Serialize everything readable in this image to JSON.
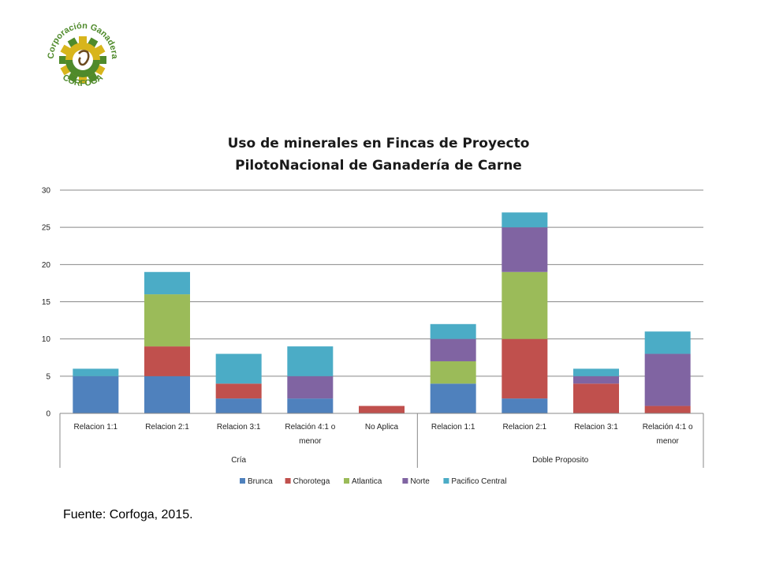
{
  "logo": {
    "text_top": "Corporación Ganadera",
    "text_bottom": "CORFOGA",
    "colors": {
      "green": "#4f8a2b",
      "yellow": "#d8b51c",
      "brown": "#6b4a1e"
    }
  },
  "source_note": "Fuente: Corfoga, 2015.",
  "chart_data": {
    "type": "bar",
    "stacked": true,
    "title": "Uso de minerales en Fincas de Proyecto PilotoNacional de Ganadería de Carne",
    "title_lines": [
      "Uso de minerales en Fincas de Proyecto",
      "PilotoNacional de Ganadería de Carne"
    ],
    "xlabel": "",
    "ylabel": "",
    "ylim": [
      0,
      30
    ],
    "yticks": [
      0,
      5,
      10,
      15,
      20,
      25,
      30
    ],
    "grid": true,
    "legend_position": "bottom",
    "groups": [
      {
        "name": "Cría",
        "categories": [
          "Relacion 1:1",
          "Relacion 2:1",
          "Relacion 3:1",
          "Relación 4:1 o menor",
          "No Aplica"
        ]
      },
      {
        "name": "Doble Proposito",
        "categories": [
          "Relacion 1:1",
          "Relacion 2:1",
          "Relacion 3:1",
          "Relación 4:1 o menor"
        ]
      }
    ],
    "categories": [
      "Relacion 1:1",
      "Relacion 2:1",
      "Relacion 3:1",
      "Relación 4:1 o menor",
      "No Aplica",
      "Relacion 1:1",
      "Relacion 2:1",
      "Relacion 3:1",
      "Relación 4:1 o menor"
    ],
    "series": [
      {
        "name": "Brunca",
        "color": "#4f81bd",
        "values": [
          5,
          5,
          2,
          2,
          0,
          4,
          2,
          0,
          0
        ]
      },
      {
        "name": "Chorotega",
        "color": "#c0504d",
        "values": [
          0,
          4,
          2,
          0,
          1,
          0,
          8,
          4,
          1
        ]
      },
      {
        "name": "Atlantica",
        "color": "#9bbb59",
        "values": [
          0,
          7,
          0,
          0,
          0,
          3,
          9,
          0,
          0
        ]
      },
      {
        "name": "Norte",
        "color": "#8064a2",
        "values": [
          0,
          0,
          0,
          3,
          0,
          3,
          6,
          1,
          7
        ]
      },
      {
        "name": "Pacifico Central",
        "color": "#4bacc6",
        "values": [
          1,
          3,
          4,
          4,
          0,
          2,
          2,
          1,
          3
        ]
      }
    ]
  }
}
